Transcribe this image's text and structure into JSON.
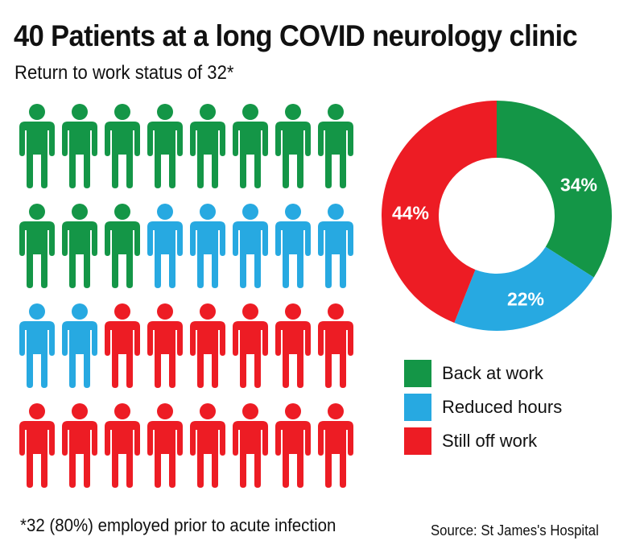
{
  "header": {
    "title": "40 Patients at a long COVID neurology clinic",
    "subtitle": "Return to work status of 32*"
  },
  "colors": {
    "back_at_work": "#149647",
    "reduced_hours": "#27A9E1",
    "still_off_work": "#ED1C24"
  },
  "pictogram": {
    "columns": 8,
    "rows": 4,
    "icon": "person-icon",
    "counts": {
      "back_at_work": 11,
      "reduced_hours": 7,
      "still_off_work": 14
    },
    "grid": [
      [
        "back_at_work",
        "back_at_work",
        "back_at_work",
        "back_at_work",
        "back_at_work",
        "back_at_work",
        "back_at_work",
        "back_at_work"
      ],
      [
        "back_at_work",
        "back_at_work",
        "back_at_work",
        "reduced_hours",
        "reduced_hours",
        "reduced_hours",
        "reduced_hours",
        "reduced_hours"
      ],
      [
        "reduced_hours",
        "reduced_hours",
        "still_off_work",
        "still_off_work",
        "still_off_work",
        "still_off_work",
        "still_off_work",
        "still_off_work"
      ],
      [
        "still_off_work",
        "still_off_work",
        "still_off_work",
        "still_off_work",
        "still_off_work",
        "still_off_work",
        "still_off_work",
        "still_off_work"
      ]
    ]
  },
  "chart_data": {
    "type": "pie",
    "subtype": "donut",
    "title": "40 Patients at a long COVID neurology clinic",
    "subtitle": "Return to work status of 32*",
    "categories": [
      "Back at work",
      "Reduced hours",
      "Still off work"
    ],
    "values": [
      34,
      22,
      44
    ],
    "value_labels": [
      "34%",
      "22%",
      "44%"
    ],
    "counts": [
      11,
      7,
      14
    ],
    "colors": [
      "#149647",
      "#27A9E1",
      "#ED1C24"
    ],
    "start_angle": "12 o'clock, clockwise",
    "legend_position": "below chart, right side"
  },
  "legend": {
    "items": [
      {
        "label": "Back at work",
        "key": "back_at_work"
      },
      {
        "label": "Reduced hours",
        "key": "reduced_hours"
      },
      {
        "label": "Still off work",
        "key": "still_off_work"
      }
    ]
  },
  "donut_labels": {
    "back_at_work": "34%",
    "reduced_hours": "22%",
    "still_off_work": "44%"
  },
  "footer": {
    "footnote": "*32 (80%) employed prior to acute infection",
    "source": "Source: St James's Hospital"
  }
}
